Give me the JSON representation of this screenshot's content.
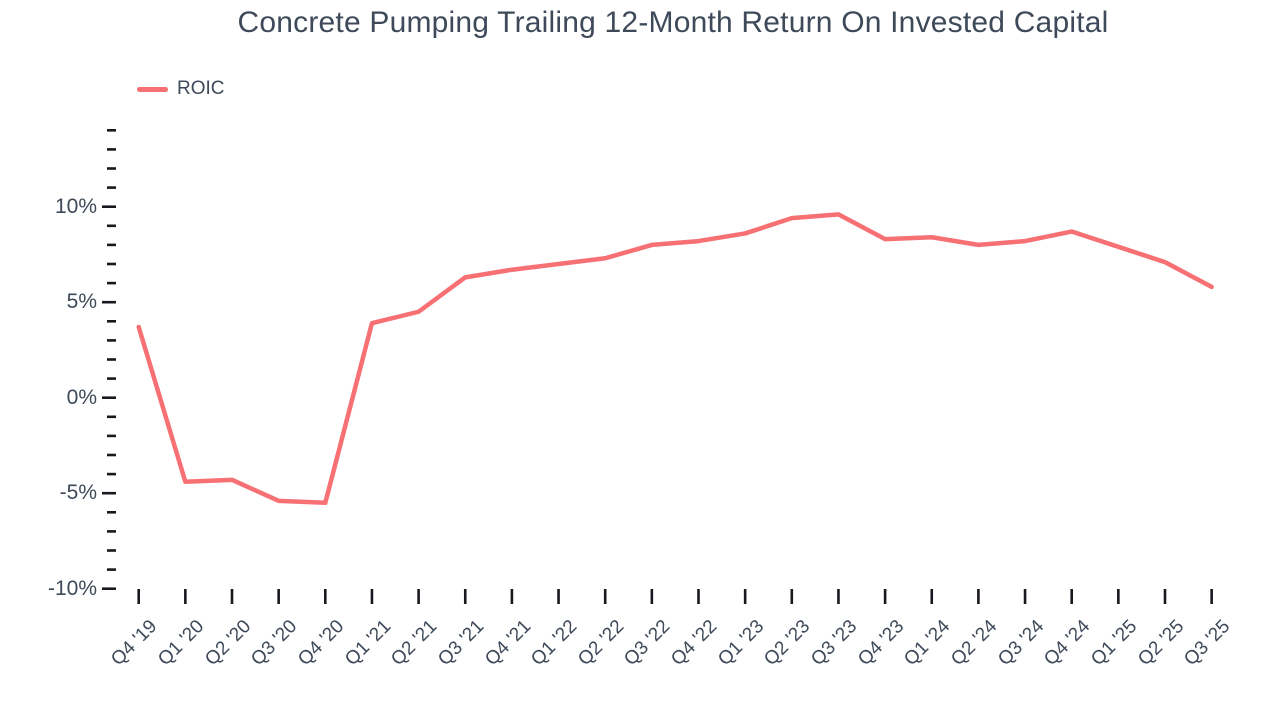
{
  "title": "Concrete Pumping Trailing 12-Month Return On Invested Capital",
  "legend": {
    "label": "ROIC"
  },
  "colors": {
    "line": "#F77073",
    "text": "#3E4A59",
    "tick": "#17191E",
    "background": "#FFFFFF"
  },
  "y_axis": {
    "tick_labels": [
      "10%",
      "5%",
      "0%",
      "-5%",
      "-10%"
    ],
    "major_values": [
      10,
      5,
      0,
      -5,
      -10
    ]
  },
  "chart_data": {
    "type": "line",
    "title": "Concrete Pumping Trailing 12-Month Return On Invested Capital",
    "unit": "%",
    "categories": [
      "Q4 '19",
      "Q1 '20",
      "Q2 '20",
      "Q3 '20",
      "Q4 '20",
      "Q1 '21",
      "Q2 '21",
      "Q3 '21",
      "Q4 '21",
      "Q1 '22",
      "Q2 '22",
      "Q3 '22",
      "Q4 '22",
      "Q1 '23",
      "Q2 '23",
      "Q3 '23",
      "Q4 '23",
      "Q1 '24",
      "Q2 '24",
      "Q3 '24",
      "Q4 '24",
      "Q1 '25",
      "Q2 '25",
      "Q3 '25"
    ],
    "series": [
      {
        "name": "ROIC",
        "values": [
          3.7,
          -4.4,
          -4.3,
          -5.4,
          -5.5,
          3.9,
          4.5,
          6.3,
          6.7,
          7.0,
          7.3,
          8.0,
          8.2,
          8.6,
          9.4,
          9.6,
          8.3,
          8.4,
          8.0,
          8.2,
          8.7,
          7.9,
          7.1,
          5.8
        ]
      }
    ],
    "xlabel": "",
    "ylabel": "",
    "ylim": [
      -10,
      14
    ],
    "y_major_step": 5,
    "y_minor_step": 1,
    "grid": false,
    "legend_position": "top-left"
  }
}
